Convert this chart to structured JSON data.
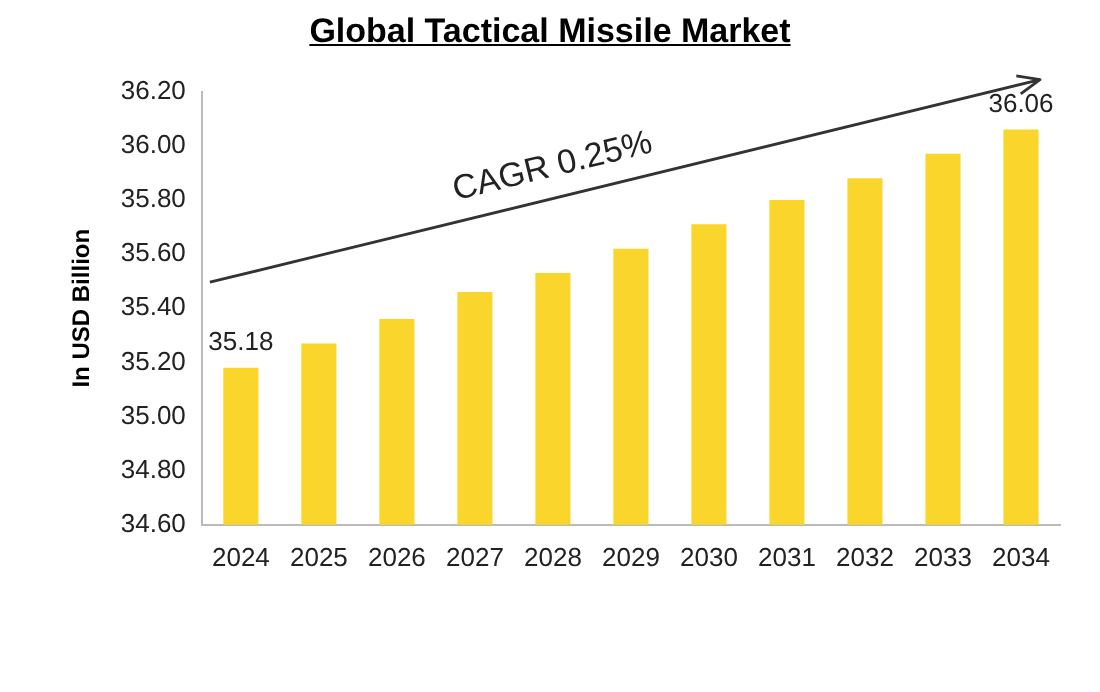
{
  "chart_data": {
    "type": "bar",
    "title": "Global Tactical Missile Market",
    "ylabel": "In USD Billion",
    "categories": [
      "2024",
      "2025",
      "2026",
      "2027",
      "2028",
      "2029",
      "2030",
      "2031",
      "2032",
      "2033",
      "2034"
    ],
    "values": [
      35.18,
      35.27,
      35.36,
      35.46,
      35.53,
      35.62,
      35.71,
      35.8,
      35.88,
      35.97,
      36.06
    ],
    "value_labels": [
      "35.18",
      null,
      null,
      null,
      null,
      null,
      null,
      null,
      null,
      null,
      "36.06"
    ],
    "color": "#fad52b",
    "ylim": [
      34.6,
      36.2
    ],
    "yticks": [
      {
        "value": 34.6,
        "label": "34.60"
      },
      {
        "value": 34.8,
        "label": "34.80"
      },
      {
        "value": 35,
        "label": "35.00"
      },
      {
        "value": 35.2,
        "label": "35.20"
      },
      {
        "value": 35.4,
        "label": "35.40"
      },
      {
        "value": 35.6,
        "label": "35.60"
      },
      {
        "value": 35.8,
        "label": "35.80"
      },
      {
        "value": 36,
        "label": "36.00"
      },
      {
        "value": 36.2,
        "label": "36.20"
      }
    ],
    "grid": false,
    "legend": false,
    "annotations": [
      "CAGR 0.25%"
    ]
  }
}
